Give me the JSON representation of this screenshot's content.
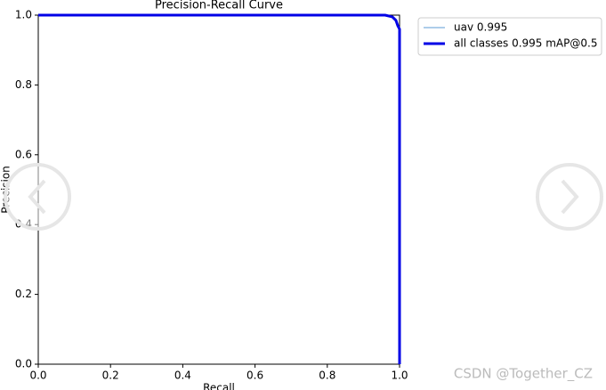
{
  "chart_data": {
    "type": "line",
    "title": "Precision-Recall Curve",
    "x_label": "Recall",
    "y_label": "Precision",
    "x": [
      0,
      0.96,
      0.98,
      0.99,
      0.995,
      1.0,
      1.0
    ],
    "series": [
      {
        "name": "uav 0.995",
        "color": "#5b9bd5",
        "line_width": 1,
        "values": [
          1,
          1,
          0.995,
          0.985,
          0.97,
          0.96,
          0
        ]
      },
      {
        "name": "all classes 0.995 mAP@0.5",
        "color": "#0000e6",
        "line_width": 3,
        "values": [
          1,
          1,
          0.995,
          0.985,
          0.97,
          0.96,
          0
        ]
      }
    ],
    "xlim": [
      0,
      1
    ],
    "ylim": [
      0,
      1
    ],
    "xticks": [
      {
        "value": 0,
        "label": "0.0"
      },
      0.2,
      0.4,
      0.6,
      0.8,
      {
        "value": 1,
        "label": "1.0"
      }
    ],
    "yticks": [
      {
        "value": 0,
        "label": "0.0"
      },
      0.2,
      0.4,
      0.6,
      0.8,
      {
        "value": 1,
        "label": "1.0"
      }
    ],
    "grid": false,
    "legend": "outside-upper-right"
  },
  "watermark": "CSDN @Together_CZ"
}
